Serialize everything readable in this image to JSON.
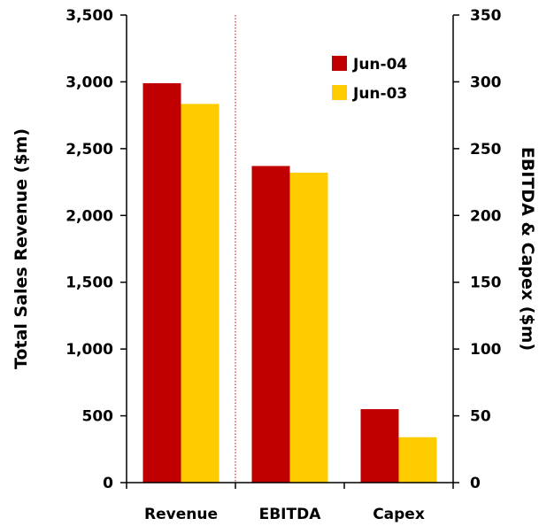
{
  "chart_data": {
    "type": "bar",
    "categories": [
      "Revenue",
      "EBITDA",
      "Capex"
    ],
    "category_axis": [
      "left",
      "right",
      "right"
    ],
    "series": [
      {
        "name": "Jun-04",
        "color": "#c00000",
        "values": [
          2990,
          237,
          55
        ]
      },
      {
        "name": "Jun-03",
        "color": "#ffcc00",
        "values": [
          2835,
          232,
          34
        ]
      }
    ],
    "ylabel_left": "Total Sales Revenue ($m)",
    "ylabel_right": "EBITDA & Capex ($m)",
    "ylim_left": [
      0,
      3500
    ],
    "ylim_right": [
      0,
      350
    ],
    "yticks_left": [
      "0",
      "500",
      "1,000",
      "1,500",
      "2,000",
      "2,500",
      "3,000",
      "3,500"
    ],
    "yticks_right": [
      "0",
      "50",
      "100",
      "150",
      "200",
      "250",
      "300",
      "350"
    ],
    "legend_position": "top-right",
    "grid": false
  }
}
